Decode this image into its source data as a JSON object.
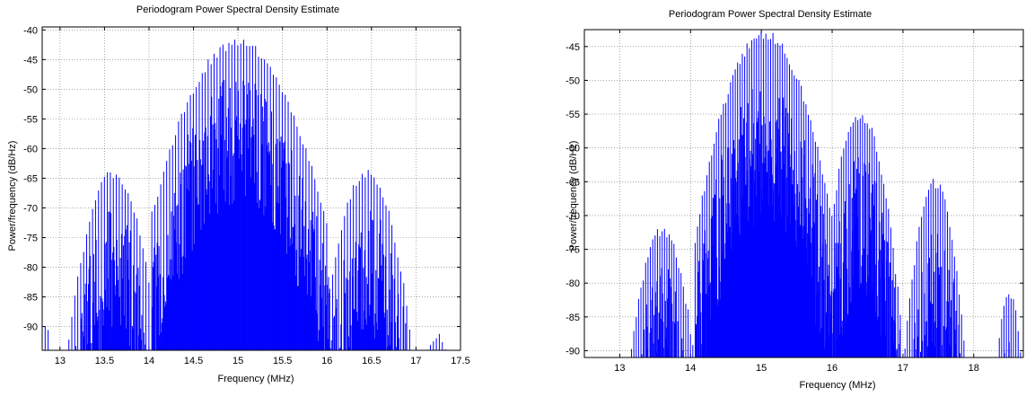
{
  "chart_data": [
    {
      "type": "line",
      "title": "Periodogram Power Spectral Density Estimate",
      "xlabel": "Frequency (MHz)",
      "ylabel": "Power/frequency (dB/Hz)",
      "xlim": [
        12.8,
        17.5
      ],
      "ylim": [
        -94,
        -39.5
      ],
      "xticks": [
        13,
        13.5,
        14,
        14.5,
        15,
        15.5,
        16,
        16.5,
        17,
        17.5
      ],
      "yticks": [
        -40,
        -45,
        -50,
        -55,
        -60,
        -65,
        -70,
        -75,
        -80,
        -85,
        -90
      ],
      "grid": true,
      "series": [
        {
          "color": "#0000ff",
          "style": "stem",
          "lobes": [
            {
              "center": 15.0,
              "halfwidth": 0.95,
              "peak": -41.5
            },
            {
              "center": 13.6,
              "halfwidth": 0.5,
              "peak": -63.5
            },
            {
              "center": 16.45,
              "halfwidth": 0.5,
              "peak": -63.5
            },
            {
              "center": 12.85,
              "halfwidth": 0.12,
              "peak": -89.0
            },
            {
              "center": 17.25,
              "halfwidth": 0.3,
              "peak": -90.5
            }
          ],
          "floor": -94,
          "spacing_mhz": 0.0333
        }
      ]
    },
    {
      "type": "line",
      "title": "Periodogram Power Spectral Density Estimate",
      "xlabel": "Frequency (MHz)",
      "ylabel": "Power/frequency (dB/Hz)",
      "xlim": [
        12.5,
        18.7
      ],
      "ylim": [
        -91,
        -42.5
      ],
      "xticks": [
        13,
        14,
        15,
        16,
        17,
        18
      ],
      "yticks": [
        -45,
        -50,
        -55,
        -60,
        -65,
        -70,
        -75,
        -80,
        -85,
        -90
      ],
      "grid": true,
      "series": [
        {
          "color": "#0000ff",
          "style": "stem",
          "lobes": [
            {
              "center": 15.05,
              "halfwidth": 0.95,
              "peak": -42.5
            },
            {
              "center": 16.4,
              "halfwidth": 0.55,
              "peak": -54.5
            },
            {
              "center": 13.6,
              "halfwidth": 0.55,
              "peak": -71.5
            },
            {
              "center": 17.45,
              "halfwidth": 0.45,
              "peak": -64.5
            },
            {
              "center": 18.5,
              "halfwidth": 0.3,
              "peak": -81.0
            }
          ],
          "floor": -91,
          "spacing_mhz": 0.0333
        }
      ]
    }
  ]
}
